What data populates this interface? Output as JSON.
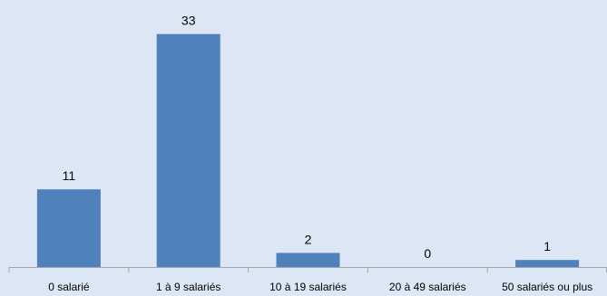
{
  "chart_data": {
    "type": "bar",
    "categories": [
      "0 salarié",
      "1 à 9 salariés",
      "10 à 19 salariés",
      "20 à 49 salariés",
      "50 salariés ou plus"
    ],
    "values": [
      11,
      33,
      2,
      0,
      1
    ],
    "title": "",
    "xlabel": "",
    "ylabel": "",
    "ylim": [
      0,
      35
    ],
    "grid": false,
    "legend": "none",
    "colors": {
      "bar": "#4f81bd",
      "background": "#dde6f5",
      "axis": "#a6a6a6"
    }
  }
}
